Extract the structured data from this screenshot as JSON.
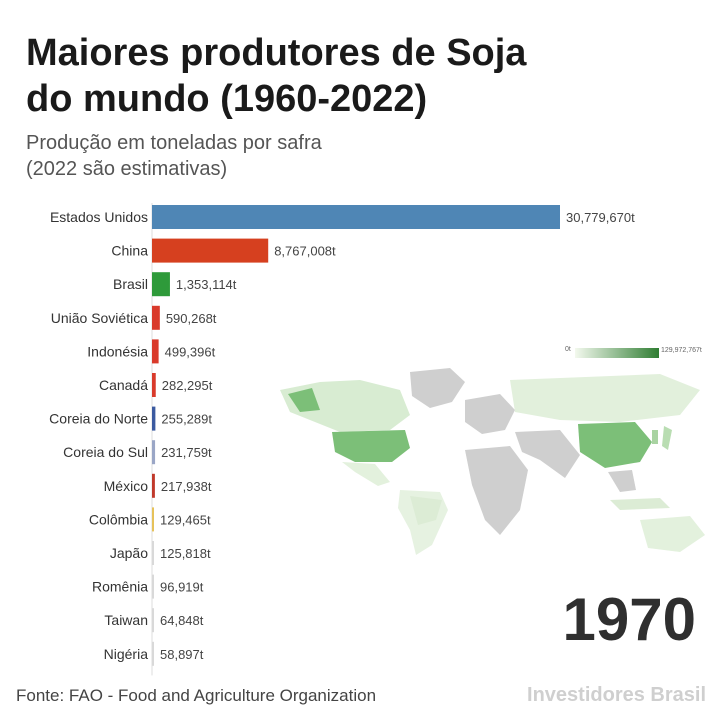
{
  "header": {
    "title_line1": "Maiores produtores de Soja",
    "title_line2": "do mundo (1960-2022)",
    "subtitle_line1": "Produção em toneladas por safra",
    "subtitle_line2": "(2022 são estimativas)"
  },
  "chart_data": {
    "type": "bar",
    "orientation": "horizontal",
    "title": "Maiores produtores de Soja do mundo (1960-2022)",
    "subtitle": "Produção em toneladas por safra (2022 são estimativas)",
    "unit_suffix": "t",
    "categories": [
      "Estados Unidos",
      "China",
      "Brasil",
      "União Soviética",
      "Indonésia",
      "Canadá",
      "Coreia do Norte",
      "Coreia do Sul",
      "México",
      "Colômbia",
      "Japão",
      "Romênia",
      "Taiwan",
      "Nigéria"
    ],
    "values": [
      30779670,
      8767008,
      1353114,
      590268,
      499396,
      282295,
      255289,
      231759,
      217938,
      129465,
      125818,
      96919,
      64848,
      58897
    ],
    "value_labels": [
      "30,779,670t",
      "8,767,008t",
      "1,353,114t",
      "590,268t",
      "499,396t",
      "282,295t",
      "255,289t",
      "231,759t",
      "217,938t",
      "129,465t",
      "125,818t",
      "96,919t",
      "64,848t",
      "58,897t"
    ],
    "colors": [
      "#4f86b5",
      "#d6401f",
      "#2e9a3a",
      "#d93a2b",
      "#d93a2b",
      "#d93a2b",
      "#3b5aa0",
      "#9aa6c6",
      "#c0392b",
      "#e6c25a",
      "#d9d9d9",
      "#d9d9d9",
      "#d9d9d9",
      "#d9d9d9"
    ],
    "xlim": [
      0,
      30779670
    ]
  },
  "map": {
    "legend_min": "0t",
    "legend_max": "129,972,767t",
    "base_color": "#cfcfcf",
    "highlight_color": "#7cbf78",
    "light_color": "#d7ebcf"
  },
  "year": "1970",
  "footer": {
    "source": "Fonte: FAO - Food and Agriculture Organization",
    "brand": "Investidores Brasil"
  }
}
